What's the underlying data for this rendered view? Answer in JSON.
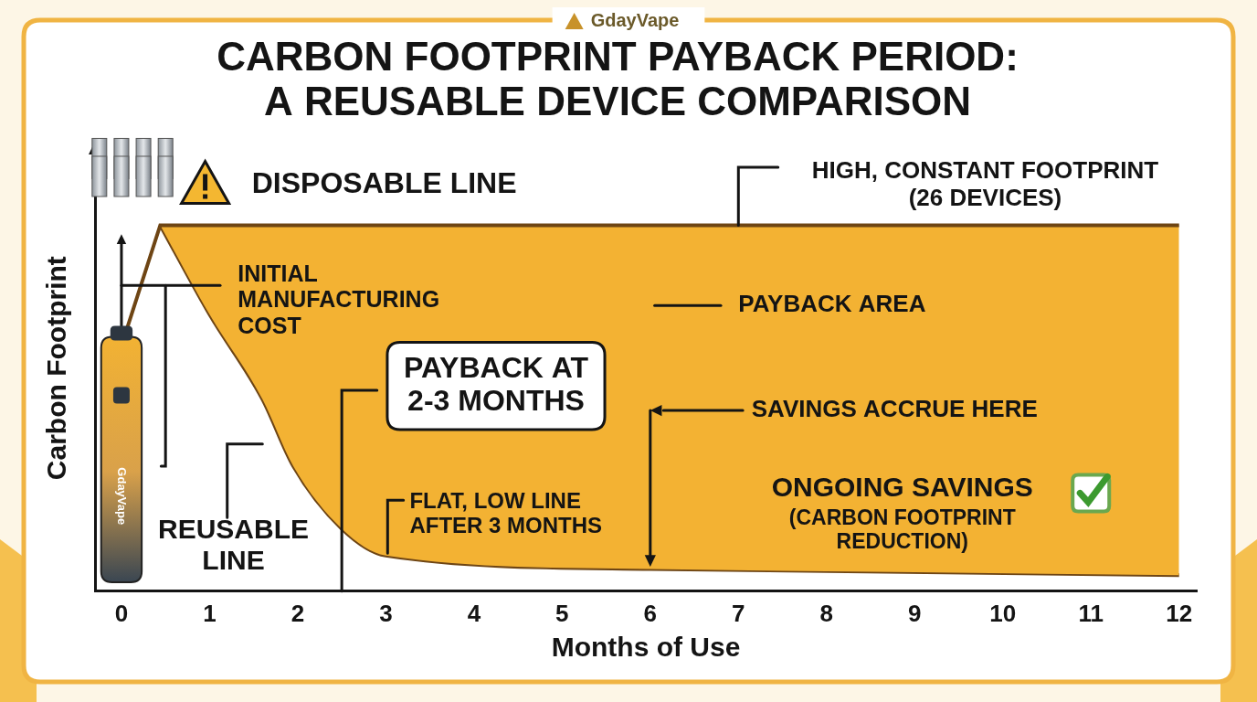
{
  "chart_data": {
    "type": "line",
    "brand": "GdayVape",
    "title": "CARBON FOOTPRINT PAYBACK PERIOD: A REUSABLE DEVICE COMPARISON",
    "x_label": "Months of Use",
    "y_label": "Carbon Footprint",
    "xlim": [
      -0.3,
      12.2
    ],
    "xticks": [
      0,
      1,
      2,
      3,
      4,
      5,
      6,
      7,
      8,
      9,
      10,
      11,
      12
    ],
    "ylim": [
      0,
      100
    ],
    "tick_labels": "x",
    "grid": false,
    "color": "#f3b233",
    "series": [
      {
        "name": "DISPOSABLE LINE",
        "color": "#6e4514",
        "x": [
          0,
          0.44,
          12
        ],
        "values": [
          55,
          82,
          82
        ]
      },
      {
        "name": "REUSABLE LINE",
        "color": "#6e4514",
        "x": [
          0.44,
          1.0,
          1.6,
          1.95,
          2.5,
          3,
          6,
          12
        ],
        "values": [
          82,
          62,
          43,
          28,
          14,
          8,
          5,
          3.6
        ]
      }
    ],
    "annotations": [
      "INITIAL MANUFACTURING COST",
      "HIGH, CONSTANT FOOTPRINT (26 DEVICES)",
      "PAYBACK AREA",
      "PAYBACK AT 2-3 MONTHS",
      "SAVINGS ACCRUE HERE",
      "FLAT, LOW LINE AFTER 3 MONTHS",
      "ONGOING SAVINGS",
      "(CARBON FOOTPRINT REDUCTION)"
    ]
  }
}
